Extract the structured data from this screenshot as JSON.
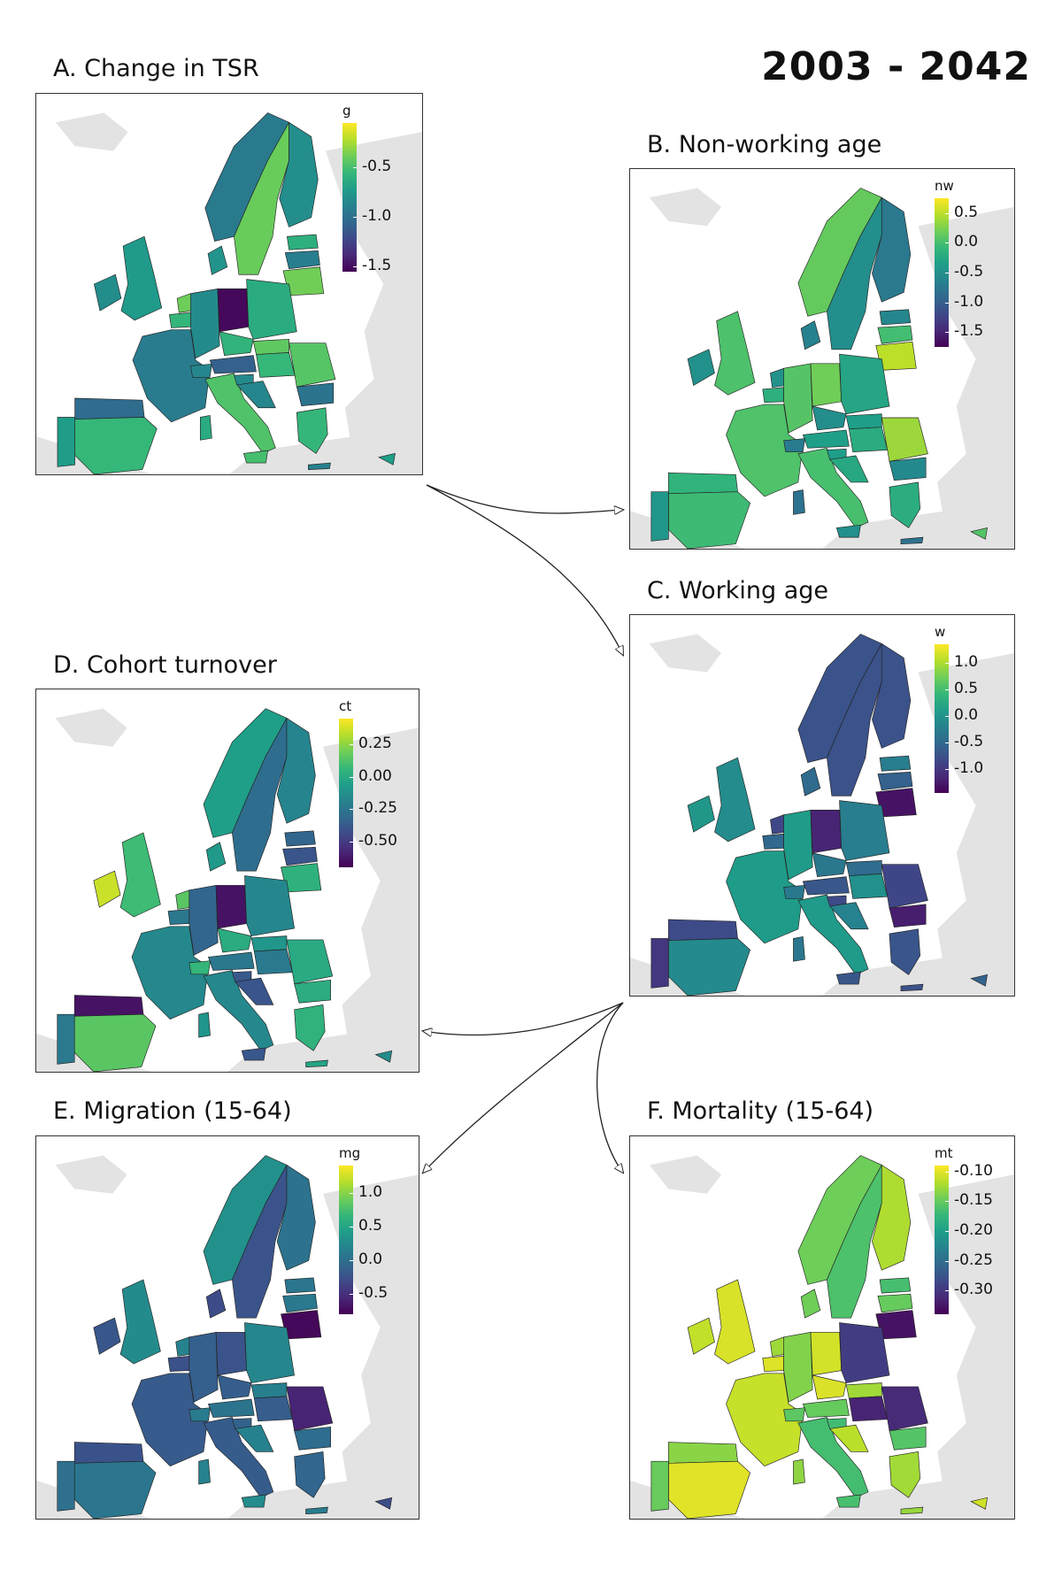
{
  "figure": {
    "title": "2003 - 2042"
  },
  "colors": {
    "land_background": "#e3e3e3",
    "border": "#222222",
    "viridis": [
      "#440154",
      "#482878",
      "#3e4a89",
      "#31688e",
      "#26828e",
      "#1f9e89",
      "#35b779",
      "#6ece58",
      "#b5de2b",
      "#fde725"
    ]
  },
  "panels": [
    {
      "id": "A",
      "title": "A. Change in TSR",
      "legend": {
        "title": "g",
        "ticks": [
          "-0.5",
          "-1.0",
          "-1.5"
        ],
        "tick_values": [
          -0.5,
          -1.0,
          -1.5
        ],
        "min": -1.55,
        "max": -0.05
      },
      "pattern": {
        "seed": 3,
        "base": 0.55,
        "spread": 0.25,
        "hotspots": [
          {
            "region": "east-germany",
            "level": 0.02
          }
        ]
      }
    },
    {
      "id": "B",
      "title": "B. Non-working age",
      "legend": {
        "title": "nw",
        "ticks": [
          "0.5",
          "0.0",
          "-0.5",
          "-1.0",
          "-1.5"
        ],
        "tick_values": [
          0.5,
          0.0,
          -0.5,
          -1.0,
          -1.5
        ],
        "min": -1.75,
        "max": 0.75
      },
      "pattern": {
        "seed": 11,
        "base": 0.58,
        "spread": 0.22,
        "hotspots": [
          {
            "region": "lithuania",
            "level": 0.9
          },
          {
            "region": "romania",
            "level": 0.85
          }
        ]
      }
    },
    {
      "id": "C",
      "title": "C. Working age",
      "legend": {
        "title": "w",
        "ticks": [
          "1.0",
          "0.5",
          "0.0",
          "-0.5",
          "-1.0"
        ],
        "tick_values": [
          1.0,
          0.5,
          0.0,
          -0.5,
          -1.0
        ],
        "min": -1.45,
        "max": 1.35
      },
      "pattern": {
        "seed": 21,
        "base": 0.35,
        "spread": 0.2,
        "hotspots": [
          {
            "region": "lithuania",
            "level": 0.05
          },
          {
            "region": "bulgaria",
            "level": 0.08
          },
          {
            "region": "east-germany",
            "level": 0.1
          }
        ]
      }
    },
    {
      "id": "D",
      "title": "D. Cohort turnover",
      "legend": {
        "title": "ct",
        "ticks": [
          "0.25",
          "0.00",
          "-0.25",
          "-0.50"
        ],
        "tick_values": [
          0.25,
          0.0,
          -0.25,
          -0.5
        ],
        "min": -0.7,
        "max": 0.45
      },
      "pattern": {
        "seed": 31,
        "base": 0.5,
        "spread": 0.25,
        "hotspots": [
          {
            "region": "ireland",
            "level": 0.92
          },
          {
            "region": "east-germany",
            "level": 0.05
          },
          {
            "region": "north-spain",
            "level": 0.05
          }
        ]
      }
    },
    {
      "id": "E",
      "title": "E. Migration (15-64)",
      "legend": {
        "title": "mg",
        "ticks": [
          "1.0",
          "0.5",
          "0.0",
          "-0.5"
        ],
        "tick_values": [
          1.0,
          0.5,
          0.0,
          -0.5
        ],
        "min": -0.8,
        "max": 1.4
      },
      "pattern": {
        "seed": 41,
        "base": 0.36,
        "spread": 0.15,
        "hotspots": [
          {
            "region": "lithuania",
            "level": 0.02
          },
          {
            "region": "romania",
            "level": 0.1
          }
        ]
      }
    },
    {
      "id": "F",
      "title": "F. Mortality (15-64)",
      "legend": {
        "title": "mt",
        "ticks": [
          "-0.10",
          "-0.15",
          "-0.20",
          "-0.25",
          "-0.30"
        ],
        "tick_values": [
          -0.1,
          -0.15,
          -0.2,
          -0.25,
          -0.3
        ],
        "min": -0.34,
        "max": -0.09
      },
      "pattern": {
        "seed": 51,
        "base": 0.82,
        "spread": 0.14,
        "hotspots": [
          {
            "region": "lithuania",
            "level": 0.05
          },
          {
            "region": "romania",
            "level": 0.12
          },
          {
            "region": "poland",
            "level": 0.18
          },
          {
            "region": "hungary",
            "level": 0.1
          }
        ]
      }
    }
  ]
}
